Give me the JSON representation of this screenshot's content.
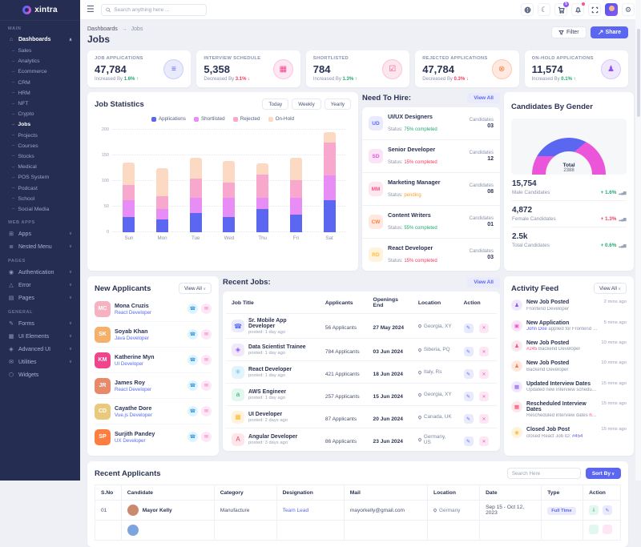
{
  "brand": {
    "name": "xintra"
  },
  "header": {
    "search_placeholder": "Search anything here ...",
    "cart_badge": "5"
  },
  "breadcrumb": {
    "parent": "Dashboards",
    "current": "Jobs",
    "separator": "→"
  },
  "page": {
    "title": "Jobs",
    "filter_label": "Filter",
    "share_label": "Share"
  },
  "sidebar": {
    "main_label": "MAIN",
    "dashboards_label": "Dashboards",
    "dashboard_children": [
      {
        "label": "Sales"
      },
      {
        "label": "Analytics"
      },
      {
        "label": "Ecommerce"
      },
      {
        "label": "CRM"
      },
      {
        "label": "HRM"
      },
      {
        "label": "NFT"
      },
      {
        "label": "Crypto"
      },
      {
        "label": "Jobs",
        "active": true
      },
      {
        "label": "Projects"
      },
      {
        "label": "Courses"
      },
      {
        "label": "Stocks"
      },
      {
        "label": "Medical"
      },
      {
        "label": "POS System"
      },
      {
        "label": "Podcast"
      },
      {
        "label": "School"
      },
      {
        "label": "Social Media"
      }
    ],
    "webapps_label": "WEB APPS",
    "webapps": [
      {
        "label": "Apps",
        "icon": "apps-grid-icon",
        "glyph": "⊞",
        "chevron": true
      },
      {
        "label": "Nested Menu",
        "icon": "nested-menu-icon",
        "glyph": "≣",
        "chevron": true
      }
    ],
    "pages_label": "PAGES",
    "pages": [
      {
        "label": "Authentication",
        "icon": "lock-icon",
        "glyph": "◉",
        "chevron": true
      },
      {
        "label": "Error",
        "icon": "error-triangle-icon",
        "glyph": "△",
        "chevron": true
      },
      {
        "label": "Pages",
        "icon": "pages-icon",
        "glyph": "▤",
        "chevron": true
      }
    ],
    "general_label": "GENERAL",
    "general": [
      {
        "label": "Forms",
        "icon": "forms-icon",
        "glyph": "✎",
        "chevron": true
      },
      {
        "label": "UI Elements",
        "icon": "ui-elements-icon",
        "glyph": "▦",
        "chevron": true
      },
      {
        "label": "Advanced UI",
        "icon": "advanced-ui-icon",
        "glyph": "◈",
        "chevron": true
      },
      {
        "label": "Utilities",
        "icon": "utilities-icon",
        "glyph": "✉",
        "chevron": true
      },
      {
        "label": "Widgets",
        "icon": "widgets-icon",
        "glyph": "⬡",
        "chevron": false
      }
    ]
  },
  "stats": [
    {
      "label": "JOB APPLICATIONS",
      "value": "47,784",
      "change_prefix": "Increased By",
      "change": "1.6%",
      "arrow": "↑",
      "change_color": "#21a871",
      "icon": "layers-icon",
      "glyph": "≡",
      "color": "#5b67f1",
      "bg": "#e9ebfd",
      "ring": "#c9cefb"
    },
    {
      "label": "INTERVIEW SCHEDULE",
      "value": "5,358",
      "change_prefix": "Decreased By",
      "change": "3.1%",
      "arrow": "↓",
      "change_color": "#f5395f",
      "icon": "calendar-icon",
      "glyph": "▦",
      "color": "#f54394",
      "bg": "#fde7f3",
      "ring": "#fbc3e2"
    },
    {
      "label": "SHORTLISTED",
      "value": "784",
      "change_prefix": "Increased By",
      "change": "1.3%",
      "arrow": "↑",
      "change_color": "#21a871",
      "icon": "person-check-icon",
      "glyph": "☑",
      "color": "#f5538c",
      "bg": "#fde7ef",
      "ring": "#fbc3d8"
    },
    {
      "label": "REJECTED APPLICATIONS",
      "value": "47,784",
      "change_prefix": "Decreased By",
      "change": "0.3%",
      "arrow": "↓",
      "change_color": "#f5395f",
      "icon": "x-circle-icon",
      "glyph": "⊗",
      "color": "#fd7e41",
      "bg": "#ffe9e0",
      "ring": "#fdc9b3"
    },
    {
      "label": "ON-HOLD APPLICATIONS",
      "value": "11,574",
      "change_prefix": "Increased By",
      "change": "0.1%",
      "arrow": "↑",
      "change_color": "#21a871",
      "icon": "person-icon",
      "glyph": "♟",
      "color": "#8e54f7",
      "bg": "#f0e9fd",
      "ring": "#d9c9fb"
    }
  ],
  "job_statistics": {
    "title": "Job Statistics",
    "tabs": [
      {
        "label": "Today"
      },
      {
        "label": "Weekly"
      },
      {
        "label": "Yearly"
      }
    ],
    "legend": [
      {
        "label": "Applications",
        "color": "#5b67f1"
      },
      {
        "label": "Shortlisted",
        "color": "#e78df5"
      },
      {
        "label": "Rejected",
        "color": "#f8a8cd"
      },
      {
        "label": "On-Hold",
        "color": "#fbd9c3"
      }
    ]
  },
  "chart_data": [
    {
      "type": "bar",
      "stacked": true,
      "title": "Job Statistics",
      "categories": [
        "Sun",
        "Mon",
        "Tue",
        "Wed",
        "Thu",
        "Fri",
        "Sat"
      ],
      "series": [
        {
          "name": "Applications",
          "color": "#5b67f1",
          "values": [
            30,
            25,
            37,
            30,
            45,
            35,
            63
          ]
        },
        {
          "name": "Shortlisted",
          "color": "#e78df5",
          "values": [
            32,
            20,
            30,
            37,
            22,
            32,
            48
          ]
        },
        {
          "name": "Rejected",
          "color": "#f8a8cd",
          "values": [
            31,
            25,
            37,
            30,
            45,
            34,
            64
          ]
        },
        {
          "name": "On-Hold",
          "color": "#fbd9c3",
          "values": [
            43,
            55,
            41,
            42,
            22,
            44,
            20
          ]
        }
      ],
      "xlabel": "",
      "ylabel": "",
      "ylim": [
        0,
        200
      ],
      "yticks": [
        0,
        50,
        100,
        150,
        200
      ],
      "grid": "dotted-horizontal",
      "legend_position": "top-center"
    },
    {
      "type": "pie",
      "subtype": "half-donut-gauge",
      "title": "Candidates By Gender",
      "labels": [
        "Male",
        "Female"
      ],
      "values": [
        78,
        22
      ],
      "colors": [
        "#5b67f1",
        "#ea55d9"
      ],
      "center_label": "Total",
      "center_value": "2388"
    }
  ],
  "need_to_hire": {
    "title": "Need To Hire:",
    "view_all": "View All",
    "items": [
      {
        "initials": "UD",
        "title": "UI/UX Designers",
        "status_prefix": "Status: ",
        "status": "75% completed",
        "status_color": "#21a871",
        "count_label": "Candidates",
        "count": "03",
        "bg": "#e9ebfd",
        "color": "#5b67f1"
      },
      {
        "initials": "SD",
        "title": "Senior Developer",
        "status_prefix": "Status: ",
        "status": "15% completed",
        "status_color": "#f5395f",
        "count_label": "Candidates",
        "count": "12",
        "bg": "#fbe4f6",
        "color": "#e354d4"
      },
      {
        "initials": "MM",
        "title": "Marketing Manager",
        "status_prefix": "Status: ",
        "status": "pending",
        "status_color": "#fb9e25",
        "count_label": "Candidates",
        "count": "08",
        "bg": "#fde7ef",
        "color": "#f5538c"
      },
      {
        "initials": "CW",
        "title": "Content Writers",
        "status_prefix": "Status: ",
        "status": "55% completed",
        "status_color": "#21a871",
        "count_label": "Candidates",
        "count": "01",
        "bg": "#ffe8df",
        "color": "#fd7e41"
      },
      {
        "initials": "RD",
        "title": "React Developer",
        "status_prefix": "Status: ",
        "status": "15% completed",
        "status_color": "#f5395f",
        "count_label": "Candidates",
        "count": "03",
        "bg": "#fff3dc",
        "color": "#fbbc3c"
      }
    ]
  },
  "gender": {
    "title": "Candidates By Gender",
    "stats": [
      {
        "value": "15,754",
        "label": "Male Candidates",
        "change": "+ 1.6%",
        "change_color": "#21a871"
      },
      {
        "value": "4,872",
        "label": "Female Candidates",
        "change": "+ 1.3%",
        "change_color": "#f5395f"
      },
      {
        "value": "2.5k",
        "label": "Total Candidates",
        "change": "+ 0.6%",
        "change_color": "#21a871"
      }
    ]
  },
  "new_applicants": {
    "title": "New Applicants",
    "view_all": "View All",
    "items": [
      {
        "name": "Mona Cruzis",
        "role": "React Developer",
        "initials": "MC",
        "bg": "#f7b2c1"
      },
      {
        "name": "Soyab Khan",
        "role": "Java Developer",
        "initials": "SK",
        "bg": "#f5b06c"
      },
      {
        "name": "Katherine Myn",
        "role": "UI Developer",
        "initials": "KM",
        "bg": "#f0448c"
      },
      {
        "name": "James Roy",
        "role": "React Developer",
        "initials": "JR",
        "bg": "#e8896a"
      },
      {
        "name": "Cayathe Dore",
        "role": "Vue.js Developer",
        "initials": "CD",
        "bg": "#e9c97e"
      },
      {
        "name": "Surjith Pandey",
        "role": "UX Developer",
        "initials": "SP",
        "bg": "#fd7e41"
      }
    ]
  },
  "recent_jobs": {
    "title": "Recent Jobs:",
    "view_all": "View All",
    "columns": [
      "Job Title",
      "Applicants",
      "Openings End",
      "Location",
      "Action"
    ],
    "rows": [
      {
        "icon": "mobile-app-icon",
        "glyph": "☎",
        "color": "#5b67f1",
        "bg": "#e9ebfd",
        "title": "Sr. Mobile App Developer",
        "posted": "posted: 1 day ago",
        "applicants": "56 Applicants",
        "end": "27 May 2024",
        "location": "Georgia, XY"
      },
      {
        "icon": "data-science-icon",
        "glyph": "◈",
        "color": "#8e54f7",
        "bg": "#f0e9fd",
        "title": "Data Scientist Trainee",
        "posted": "posted: 1 day ago",
        "applicants": "784 Applicants",
        "end": "03 Jun 2024",
        "location": "Siberia, PQ"
      },
      {
        "icon": "react-icon",
        "glyph": "⚛",
        "color": "#25a0e2",
        "bg": "#e3f3fb",
        "title": "React Developer",
        "posted": "posted: 1 day ago",
        "applicants": "421 Applicants",
        "end": "18 Jun 2024",
        "location": "Italy, Rs"
      },
      {
        "icon": "aws-icon",
        "glyph": "a",
        "color": "#21a871",
        "bg": "#e2f8ef",
        "title": "AWS Engineer",
        "posted": "posted: 1 day ago",
        "applicants": "257 Applicants",
        "end": "15 Jun 2024",
        "location": "Georgia, XY"
      },
      {
        "icon": "ui-grid-icon",
        "glyph": "▦",
        "color": "#fbbc3c",
        "bg": "#fff3dc",
        "title": "UI Developer",
        "posted": "posted: 2 days ago",
        "applicants": "87 Applicants",
        "end": "20 Jun 2024",
        "location": "Canada, UK"
      },
      {
        "icon": "angular-icon",
        "glyph": "A",
        "color": "#f5395f",
        "bg": "#fde7ea",
        "title": "Angular Developer",
        "posted": "posted: 3 days ago",
        "applicants": "86 Applicants",
        "end": "23 Jun 2024",
        "location": "Germany, US"
      }
    ]
  },
  "activity_feed": {
    "title": "Activity Feed",
    "view_all": "View All",
    "items": [
      {
        "icon": "person-icon",
        "glyph": "♟",
        "color": "#8e54f7",
        "bg": "#f0e9fd",
        "title": "New Job Posted",
        "desc_pre": "Frontend Developer",
        "highlight": "",
        "desc_post": "",
        "highlight_color": "#5b67f1",
        "time": "2 mins ago"
      },
      {
        "icon": "application-icon",
        "glyph": "▣",
        "color": "#e354d4",
        "bg": "#fbe4f6",
        "title": "New Application",
        "desc_pre": "",
        "highlight": "John Doe",
        "desc_post": " applied for Frontend Develop...",
        "highlight_color": "#5b67f1",
        "time": "5 mins ago"
      },
      {
        "icon": "person-icon",
        "glyph": "♟",
        "color": "#f5538c",
        "bg": "#fde7ef",
        "title": "New Job Posted",
        "desc_pre": "",
        "highlight": "#245",
        "desc_post": " Backend Developer",
        "highlight_color": "#f5538c",
        "time": "10 mins ago"
      },
      {
        "icon": "person-icon",
        "glyph": "♟",
        "color": "#fd7e41",
        "bg": "#ffe8df",
        "title": "New Job Posted",
        "desc_pre": "Backend Developer",
        "highlight": "",
        "desc_post": "",
        "highlight_color": "#5b67f1",
        "time": "10 mins ago"
      },
      {
        "icon": "calendar-icon",
        "glyph": "▦",
        "color": "#8e54f7",
        "bg": "#f0e9fd",
        "title": "Updated Interview Dates",
        "desc_pre": "Updated new interview scheduled and ...",
        "highlight": "",
        "desc_post": "",
        "highlight_color": "#5b67f1",
        "time": "15 mins ago"
      },
      {
        "icon": "calendar-icon",
        "glyph": "▦",
        "color": "#f5395f",
        "bg": "#fde7ea",
        "title": "Rescheduled Interview Dates",
        "desc_pre": "Rescheduled interview dates ",
        "highlight": "notificati...",
        "desc_post": "",
        "highlight_color": "#f5395f",
        "time": "15 mins ago"
      },
      {
        "icon": "closed-circle-icon",
        "glyph": "◉",
        "color": "#fbbc3c",
        "bg": "#fff3dc",
        "title": "Closed Job Post",
        "desc_pre": "closed React Job ID: ",
        "highlight": "#454",
        "desc_post": "",
        "highlight_color": "#5b67f1",
        "time": "15 mins ago"
      }
    ]
  },
  "recent_applicants": {
    "title": "Recent Applicants",
    "search_placeholder": "Search Here",
    "sort_label": "Sort By",
    "columns": [
      "S.No",
      "Candidate",
      "Category",
      "Designation",
      "Mail",
      "Location",
      "Date",
      "Type",
      "Action"
    ],
    "rows": [
      {
        "sno": "01",
        "name": "Mayor Kelly",
        "avatar_bg": "#c98a6d",
        "category": "Manufacture",
        "designation": "Team Lead",
        "mail": "mayorkelly@gmail.com",
        "location": "Germany",
        "date": "Sep 15 - Oct 12, 2023",
        "type": "Full Time"
      }
    ]
  }
}
